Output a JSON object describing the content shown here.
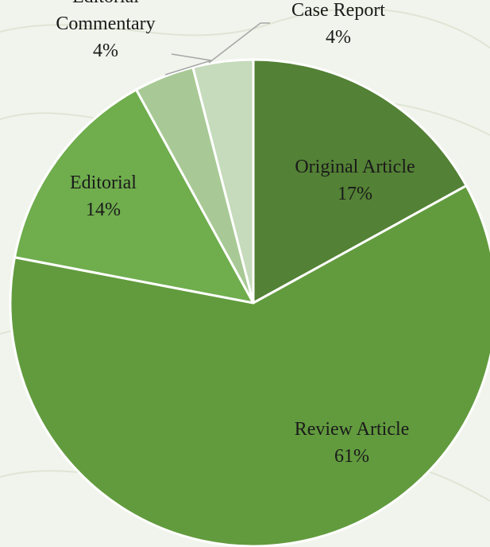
{
  "chart_data": {
    "type": "pie",
    "title": "",
    "start_angle_deg": 0,
    "direction": "clockwise",
    "slices": [
      {
        "name": "Original Article",
        "percent_label": "17%",
        "value": 17,
        "color": "#538135"
      },
      {
        "name": "Review Article",
        "percent_label": "61%",
        "value": 61,
        "color": "#629b3e"
      },
      {
        "name": "Editorial",
        "percent_label": "14%",
        "value": 14,
        "color": "#6fad4d"
      },
      {
        "name": "Editorial Commentary",
        "percent_label": "4%",
        "value": 4,
        "color": "#a8c995"
      },
      {
        "name": "Case Report",
        "percent_label": "4%",
        "value": 4,
        "color": "#c5dbbb"
      }
    ],
    "labels": [
      {
        "lines": [
          "Original Article",
          "17%"
        ],
        "placement": "inside"
      },
      {
        "lines": [
          "Review Article",
          "61%"
        ],
        "placement": "inside"
      },
      {
        "lines": [
          "Editorial",
          "14%"
        ],
        "placement": "inside"
      },
      {
        "lines": [
          "Editorial",
          "Commentary",
          "4%"
        ],
        "placement": "outside-with-leader"
      },
      {
        "lines": [
          "Case Report",
          "4%"
        ],
        "placement": "outside-with-leader"
      }
    ],
    "leader_line_color": "#a6a6a6",
    "background_color": "#f1f4ec"
  }
}
